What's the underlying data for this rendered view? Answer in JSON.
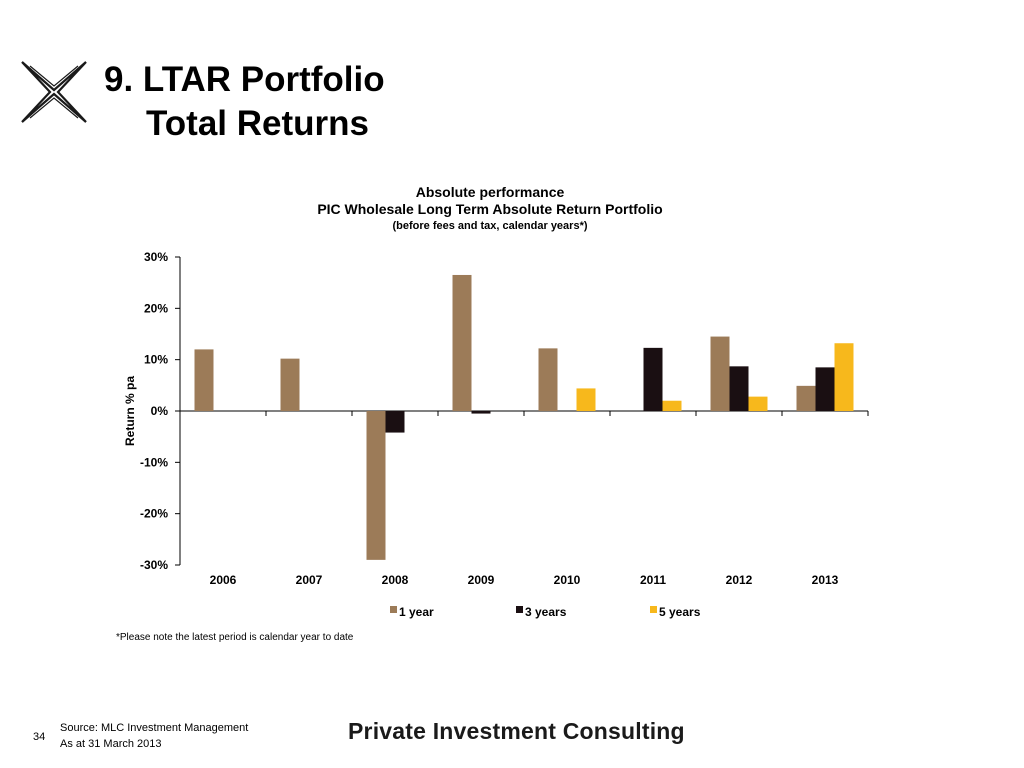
{
  "slide": {
    "title_line1": "9. LTAR Portfolio",
    "title_line2": "Total Returns",
    "footnote": "*Please note the latest period is calendar year to date",
    "page_number": "34",
    "source_line1": "Source: MLC Investment Management",
    "source_line2": "As at 31 March 2013",
    "brand": "Private Investment Consulting"
  },
  "chart_data": {
    "type": "bar",
    "title": "Absolute performance",
    "subtitle_line1": "PIC Wholesale Long Term Absolute Return Portfolio",
    "subtitle_line2": "(before fees and tax, calendar years*)",
    "xlabel": "",
    "ylabel": "Return % pa",
    "ylim": [
      -30,
      30
    ],
    "yticks": [
      30,
      20,
      10,
      0,
      -10,
      -20,
      -30
    ],
    "ytick_labels": [
      "30%",
      "20%",
      "10%",
      "0%",
      "-10%",
      "-20%",
      "-30%"
    ],
    "categories": [
      "2006",
      "2007",
      "2008",
      "2009",
      "2010",
      "2011",
      "2012",
      "2013"
    ],
    "series": [
      {
        "name": "1 year",
        "color": "#9c7b58",
        "values": [
          12.0,
          10.2,
          -29.0,
          26.5,
          12.2,
          null,
          14.5,
          4.9
        ]
      },
      {
        "name": "3 years",
        "color": "#1a0f12",
        "values": [
          null,
          null,
          -4.2,
          -0.5,
          null,
          12.3,
          8.7,
          8.5
        ]
      },
      {
        "name": "5 years",
        "color": "#f7b81c",
        "values": [
          null,
          null,
          null,
          null,
          4.4,
          2.0,
          2.8,
          13.2
        ]
      }
    ],
    "legend": "bottom",
    "grid": false
  }
}
